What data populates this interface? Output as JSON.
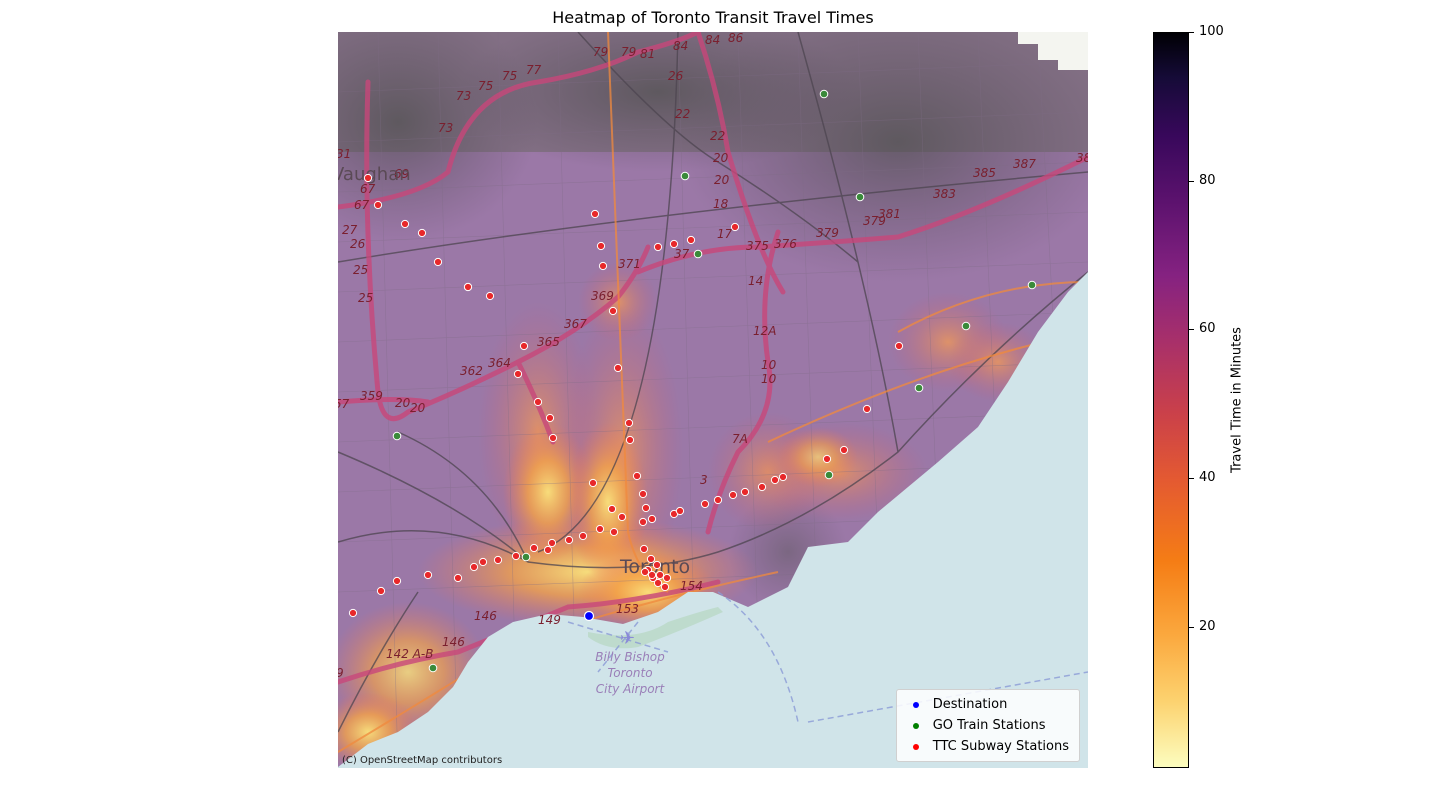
{
  "title": "Heatmap of Toronto Transit Travel Times",
  "attribution": "(C) OpenStreetMap contributors",
  "colorbar": {
    "label": "Travel Time in Minutes",
    "ticks": [
      "20",
      "40",
      "60",
      "80",
      "100"
    ],
    "tick_values": [
      20,
      40,
      60,
      80,
      100
    ],
    "range": [
      1,
      100
    ],
    "colormap": "inferno_r"
  },
  "legend": {
    "placement": "lower-right",
    "items": [
      {
        "label": "Destination",
        "color": "#0000ff"
      },
      {
        "label": "GO Train Stations",
        "color": "#008000"
      },
      {
        "label": "TTC Subway Stations",
        "color": "#ff0000"
      }
    ]
  },
  "map_labels": {
    "city": "Toronto",
    "vaughan": "Vaughan",
    "airport": [
      "Billy Bishop",
      "Toronto",
      "City Airport"
    ]
  },
  "highway_shields": [
    "79",
    "79",
    "81",
    "84",
    "84",
    "86",
    "77",
    "75",
    "75",
    "73",
    "73",
    "26",
    "22",
    "22",
    "20",
    "20",
    "18",
    "17",
    "375",
    "376",
    "379",
    "379",
    "381",
    "383",
    "385",
    "387",
    "38",
    "67",
    "67",
    "69",
    "27",
    "26",
    "25",
    "25",
    "371",
    "37",
    "369",
    "367",
    "365",
    "364",
    "362",
    "14",
    "12A",
    "10",
    "10",
    "359",
    "57",
    "20",
    "20",
    "7A",
    "3",
    "153",
    "154",
    "149",
    "146",
    "146",
    "142 A-B",
    "9",
    "31"
  ]
}
